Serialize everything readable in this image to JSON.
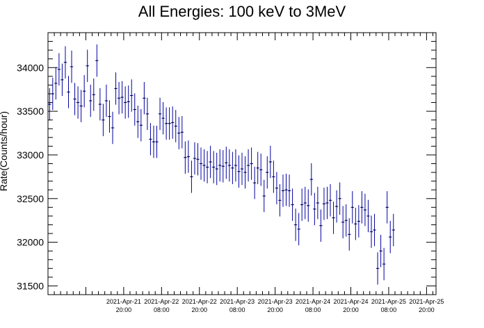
{
  "chart_data": {
    "type": "scatter",
    "title": "All Energies:  100 keV to 3MeV",
    "xlabel": "",
    "ylabel": "Rate(Counts/hour)",
    "ylim": [
      31400,
      34400
    ],
    "yticks": [
      31500,
      32000,
      32500,
      33000,
      33500,
      34000
    ],
    "xlim": [
      "2021-04-20 20:00",
      "2021-04-25 23:00"
    ],
    "xtick_labels": [
      {
        "date": "2021-Apr-21",
        "time": "20:00"
      },
      {
        "date": "2021-Apr-22",
        "time": "08:00"
      },
      {
        "date": "2021-Apr-22",
        "time": "20:00"
      },
      {
        "date": "2021-Apr-23",
        "time": "08:00"
      },
      {
        "date": "2021-Apr-23",
        "time": "20:00"
      },
      {
        "date": "2021-Apr-24",
        "time": "08:00"
      },
      {
        "date": "2021-Apr-24",
        "time": "20:00"
      },
      {
        "date": "2021-Apr-25",
        "time": "08:00"
      },
      {
        "date": "2021-Apr-25",
        "time": "20:00"
      }
    ],
    "grid": false,
    "marker_color": "#0000a0",
    "bin_width_hours": 1,
    "series": [
      {
        "x_start": "2021-04-20 20:00",
        "values": [
          33580,
          33700,
          33820,
          33980,
          33860,
          34060,
          33720,
          34010,
          33640,
          33600,
          33560,
          33730,
          34020,
          33620,
          33690,
          34080,
          33580,
          33400,
          33620,
          33440,
          33310,
          33760,
          33650,
          33660,
          33600,
          33610,
          33680,
          33520,
          33380,
          33340,
          33650,
          33470,
          33180,
          33150,
          33150,
          33470,
          33420,
          33360,
          33360,
          33370,
          33330,
          33250,
          33260,
          32970,
          32980,
          32750,
          32960,
          32950,
          32900,
          32880,
          32860,
          32920,
          32860,
          32840,
          32880,
          32870,
          32910,
          32880,
          32850,
          32880,
          32810,
          32840,
          32800,
          32880,
          32900,
          32680,
          32850,
          32830,
          32530,
          32800,
          32920,
          32750,
          32620,
          32480,
          32590,
          32600,
          32590,
          32430,
          32200,
          32150,
          32430,
          32450,
          32420,
          32720,
          32380,
          32450,
          32190,
          32440,
          32450,
          32480,
          32280,
          32410,
          32500,
          32230,
          32250,
          32090,
          32400,
          32210,
          32240,
          32400,
          32370,
          32300,
          32120,
          32140,
          31700,
          31900,
          31750,
          32400,
          32060,
          32140
        ],
        "errors": [
          185,
          185,
          185,
          185,
          185,
          185,
          185,
          185,
          185,
          185,
          185,
          185,
          185,
          185,
          185,
          185,
          185,
          185,
          185,
          185,
          185,
          185,
          185,
          185,
          185,
          185,
          185,
          185,
          185,
          185,
          185,
          185,
          185,
          185,
          185,
          185,
          185,
          185,
          185,
          185,
          185,
          185,
          185,
          185,
          185,
          185,
          185,
          185,
          185,
          185,
          185,
          185,
          185,
          185,
          185,
          185,
          185,
          185,
          185,
          185,
          185,
          185,
          185,
          185,
          185,
          185,
          185,
          185,
          185,
          185,
          185,
          185,
          185,
          185,
          185,
          185,
          185,
          185,
          185,
          185,
          185,
          185,
          185,
          185,
          185,
          185,
          185,
          185,
          185,
          185,
          185,
          185,
          185,
          185,
          185,
          185,
          185,
          185,
          185,
          185,
          185,
          185,
          185,
          185,
          185,
          185,
          185,
          185,
          185,
          185
        ]
      }
    ]
  }
}
